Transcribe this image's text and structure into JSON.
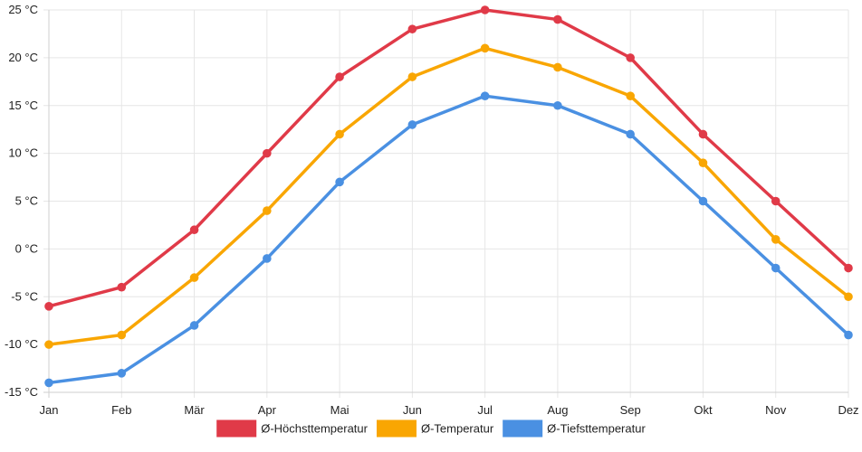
{
  "chart_data": {
    "type": "line",
    "categories": [
      "Jan",
      "Feb",
      "Mär",
      "Apr",
      "Mai",
      "Jun",
      "Jul",
      "Aug",
      "Sep",
      "Okt",
      "Nov",
      "Dez"
    ],
    "y_unit": "°C",
    "ylim": [
      -15,
      25
    ],
    "yticks": [
      -15,
      -10,
      -5,
      0,
      5,
      10,
      15,
      20,
      25
    ],
    "grid": true,
    "legend_position": "bottom",
    "series": [
      {
        "name": "Ø-Höchsttemperatur",
        "color": "#e03a48",
        "values": [
          -6,
          -4,
          2,
          10,
          18,
          23,
          25,
          24,
          20,
          12,
          5,
          -2
        ]
      },
      {
        "name": "Ø-Temperatur",
        "color": "#f9a602",
        "values": [
          -10,
          -9,
          -3,
          4,
          12,
          18,
          21,
          19,
          16,
          9,
          1,
          -5
        ]
      },
      {
        "name": "Ø-Tiefsttemperatur",
        "color": "#4a90e2",
        "values": [
          -14,
          -13,
          -8,
          -1,
          7,
          13,
          16,
          15,
          12,
          5,
          -2,
          -9
        ]
      }
    ]
  }
}
